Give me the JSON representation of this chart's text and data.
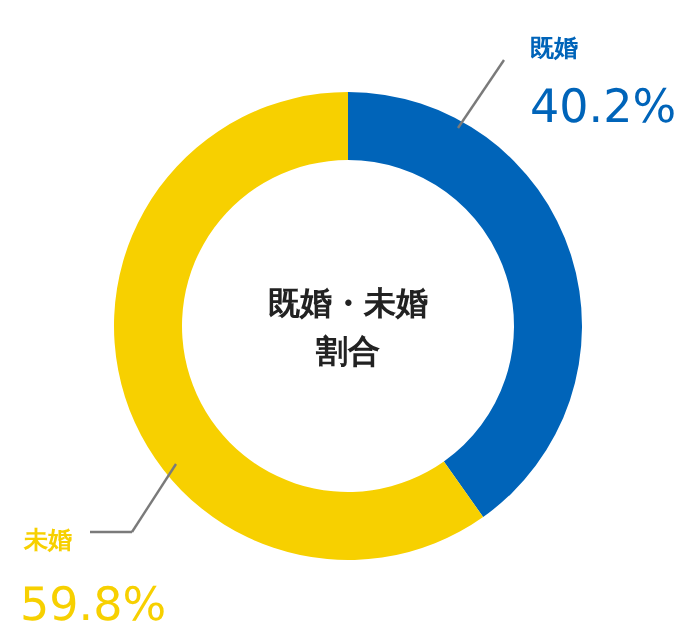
{
  "chart_data": {
    "type": "donut",
    "title": "既婚・未婚",
    "subtitle": "割合",
    "categories": [
      "既婚",
      "未婚"
    ],
    "values": [
      40.2,
      59.8
    ],
    "colors": [
      "#0064b9",
      "#f7d000"
    ],
    "value_labels": [
      "40.2%",
      "59.8%"
    ]
  }
}
